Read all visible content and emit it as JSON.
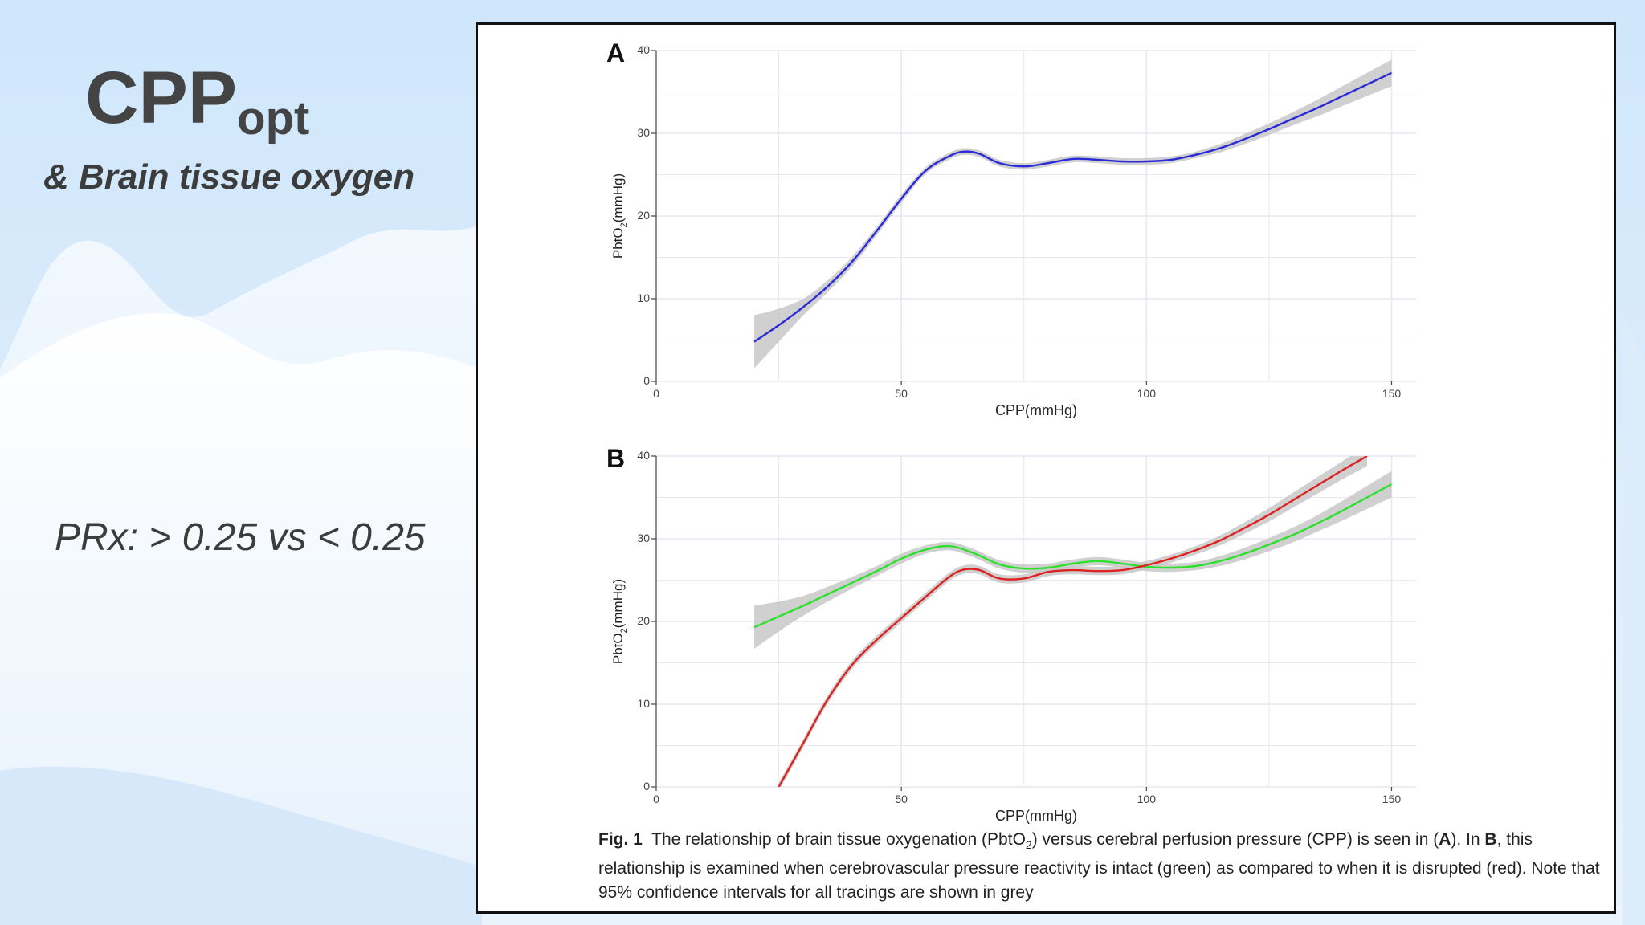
{
  "slide": {
    "title_main": "CPP",
    "title_sub": "opt",
    "subtitle": "& Brain tissue oxygen",
    "prx_text": "PRx: > 0.25 vs < 0.25"
  },
  "caption": {
    "fig_label": "Fig. 1",
    "text_1": "The relationship of brain tissue oxygenation (PbtO",
    "sub_2a": "2",
    "text_2": ") versus cerebral perfusion pressure (CPP) is seen in (",
    "panel_a": "A",
    "text_3": "). In ",
    "panel_b": "B",
    "text_4": ", this relationship is examined when cerebrovascular pressure reactivity is intact (green) as compared to when it is disrupted (red). Note that 95% confidence intervals for all tracings are shown in grey"
  },
  "colors": {
    "blue": "#2b2bd6",
    "green": "#2ee02e",
    "red": "#dd2222",
    "ci_grey": "#c8c8c8",
    "grid": "#ece6f2"
  },
  "chart_data": [
    {
      "panel": "A",
      "type": "line",
      "xlabel": "CPP(mmHg)",
      "ylabel": "PbtO2(mmHg)",
      "ylabel_main": "PbtO",
      "ylabel_sub": "2",
      "ylabel_unit": "(mmHg)",
      "xlim": [
        0,
        155
      ],
      "ylim": [
        0,
        40
      ],
      "xticks": [
        0,
        50,
        100,
        150
      ],
      "yticks": [
        0,
        10,
        20,
        30,
        40
      ],
      "grid": true,
      "series": [
        {
          "color": "#2b2bd6",
          "x": [
            20,
            25,
            30,
            35,
            40,
            45,
            50,
            55,
            60,
            63,
            66,
            70,
            75,
            80,
            85,
            90,
            95,
            100,
            105,
            110,
            115,
            120,
            125,
            130,
            135,
            140,
            145,
            150
          ],
          "y": [
            4.8,
            6.8,
            9.0,
            11.5,
            14.5,
            18.2,
            22.1,
            25.5,
            27.3,
            27.8,
            27.5,
            26.4,
            26.0,
            26.4,
            26.9,
            26.8,
            26.6,
            26.6,
            26.8,
            27.4,
            28.2,
            29.3,
            30.5,
            31.8,
            33.1,
            34.5,
            35.9,
            37.3
          ],
          "ci": [
            3.2,
            2.0,
            1.0,
            0.7,
            0.6,
            0.5,
            0.5,
            0.4,
            0.4,
            0.4,
            0.4,
            0.4,
            0.4,
            0.4,
            0.4,
            0.4,
            0.4,
            0.4,
            0.4,
            0.4,
            0.5,
            0.6,
            0.7,
            0.8,
            1.0,
            1.2,
            1.4,
            1.6
          ]
        }
      ]
    },
    {
      "panel": "B",
      "type": "line",
      "xlabel": "CPP(mmHg)",
      "ylabel": "PbtO2(mmHg)",
      "ylabel_main": "PbtO",
      "ylabel_sub": "2",
      "ylabel_unit": "(mmHg)",
      "xlim": [
        0,
        155
      ],
      "ylim": [
        0,
        40
      ],
      "xticks": [
        0,
        50,
        100,
        150
      ],
      "yticks": [
        0,
        10,
        20,
        30,
        40
      ],
      "grid": true,
      "series": [
        {
          "color": "#2ee02e",
          "x": [
            20,
            25,
            30,
            35,
            40,
            45,
            50,
            55,
            60,
            65,
            70,
            75,
            80,
            85,
            90,
            95,
            100,
            105,
            110,
            115,
            120,
            125,
            130,
            135,
            140,
            145,
            150
          ],
          "y": [
            19.3,
            20.6,
            21.9,
            23.3,
            24.7,
            26.1,
            27.6,
            28.7,
            29.1,
            28.2,
            26.9,
            26.4,
            26.5,
            27.0,
            27.3,
            27.0,
            26.6,
            26.5,
            26.7,
            27.3,
            28.2,
            29.3,
            30.5,
            31.9,
            33.4,
            35.0,
            36.6
          ],
          "ci": [
            2.6,
            1.8,
            1.2,
            0.9,
            0.7,
            0.6,
            0.6,
            0.5,
            0.5,
            0.5,
            0.5,
            0.5,
            0.5,
            0.5,
            0.5,
            0.5,
            0.5,
            0.5,
            0.5,
            0.6,
            0.7,
            0.8,
            0.9,
            1.0,
            1.2,
            1.4,
            1.6
          ]
        },
        {
          "color": "#dd2222",
          "x": [
            25,
            30,
            35,
            40,
            45,
            50,
            55,
            60,
            63,
            66,
            70,
            75,
            80,
            85,
            90,
            95,
            100,
            105,
            110,
            115,
            120,
            125,
            130,
            135,
            140,
            145
          ],
          "y": [
            0.0,
            5.3,
            10.6,
            14.8,
            17.8,
            20.4,
            23.0,
            25.5,
            26.3,
            26.2,
            25.2,
            25.2,
            26.0,
            26.2,
            26.1,
            26.2,
            26.8,
            27.6,
            28.6,
            29.8,
            31.3,
            32.9,
            34.7,
            36.5,
            38.3,
            40.0
          ],
          "ci": [
            0.5,
            0.5,
            0.5,
            0.5,
            0.5,
            0.5,
            0.5,
            0.5,
            0.5,
            0.5,
            0.5,
            0.5,
            0.5,
            0.5,
            0.5,
            0.5,
            0.5,
            0.5,
            0.5,
            0.6,
            0.7,
            0.8,
            0.9,
            1.0,
            1.1,
            1.2
          ]
        }
      ]
    }
  ]
}
